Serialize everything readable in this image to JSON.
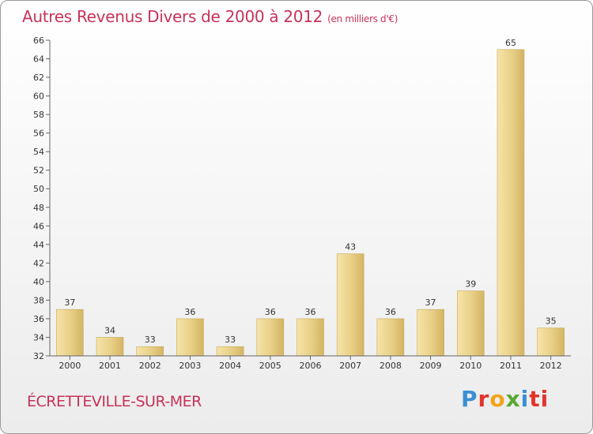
{
  "chart_data": {
    "type": "bar",
    "title": "Autres Revenus Divers de 2000 à 2012",
    "subtitle": "(en milliers d'€)",
    "xlabel": "",
    "ylabel": "",
    "categories": [
      "2000",
      "2001",
      "2002",
      "2003",
      "2004",
      "2005",
      "2006",
      "2007",
      "2008",
      "2009",
      "2010",
      "2011",
      "2012"
    ],
    "values": [
      37,
      34,
      33,
      36,
      33,
      36,
      36,
      43,
      36,
      37,
      39,
      65,
      35
    ],
    "ylim": [
      32,
      66
    ],
    "ytick_step": 2,
    "grid": false,
    "bar_color": "#e8cf86"
  },
  "location": "ÉCRETTEVILLE-SUR-MER",
  "brand": {
    "parts": [
      "P",
      "r",
      "o",
      "x",
      "i",
      "ti"
    ]
  }
}
